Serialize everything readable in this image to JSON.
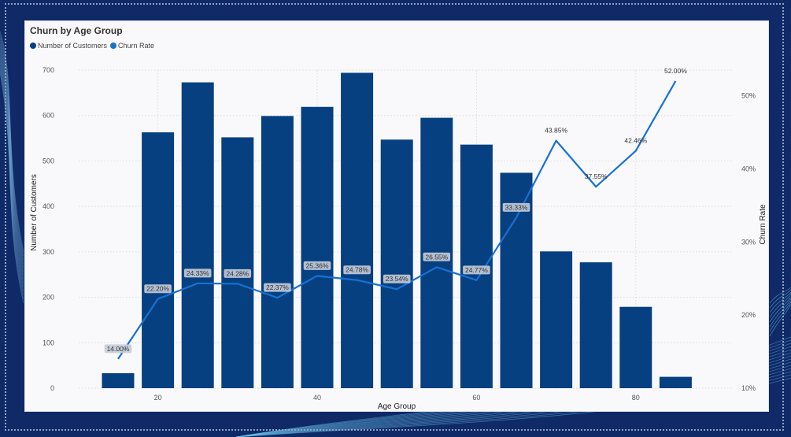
{
  "colors": {
    "bar": "#074080",
    "line": "#1771d4",
    "background": "#0f2a66",
    "card": "#f9f9fb",
    "label_box": "#c5ccd8"
  },
  "chart_data": {
    "type": "bar",
    "title": "Churn by Age Group",
    "xlabel": "Age Group",
    "ylabel": "Number of Customers",
    "y2label": "Churn Rate",
    "legend_placement": "top-left",
    "grid": true,
    "x": [
      15,
      20,
      25,
      30,
      35,
      40,
      45,
      50,
      55,
      60,
      65,
      70,
      75,
      80,
      85
    ],
    "x_ticks": [
      20,
      40,
      60,
      80
    ],
    "ylim": [
      0,
      700
    ],
    "y_ticks": [
      0,
      100,
      200,
      300,
      400,
      500,
      600,
      700
    ],
    "y2lim": [
      0.1,
      0.535
    ],
    "y2_ticks": [
      "10%",
      "20%",
      "30%",
      "40%",
      "50%"
    ],
    "series": [
      {
        "name": "Number of Customers",
        "type": "bar",
        "color": "#074080",
        "values": [
          33,
          563,
          673,
          552,
          599,
          619,
          694,
          547,
          595,
          536,
          474,
          301,
          277,
          179,
          25
        ]
      },
      {
        "name": "Churn Rate",
        "type": "line",
        "color": "#1771d4",
        "values": [
          0.14,
          0.222,
          0.2433,
          0.2428,
          0.2237,
          0.2536,
          0.2478,
          0.2354,
          0.2655,
          0.2477,
          0.3333,
          0.4385,
          0.3755,
          0.4246,
          0.52
        ],
        "labels": [
          "14.00%",
          "22.20%",
          "24.33%",
          "24.28%",
          "22.37%",
          "25.36%",
          "24.78%",
          "23.54%",
          "26.55%",
          "24.77%",
          "33.33%",
          "43.85%",
          "37.55%",
          "42.46%",
          "52.00%"
        ],
        "label_boxed": [
          true,
          true,
          true,
          true,
          true,
          true,
          true,
          true,
          true,
          true,
          true,
          false,
          false,
          false,
          false
        ]
      }
    ]
  }
}
